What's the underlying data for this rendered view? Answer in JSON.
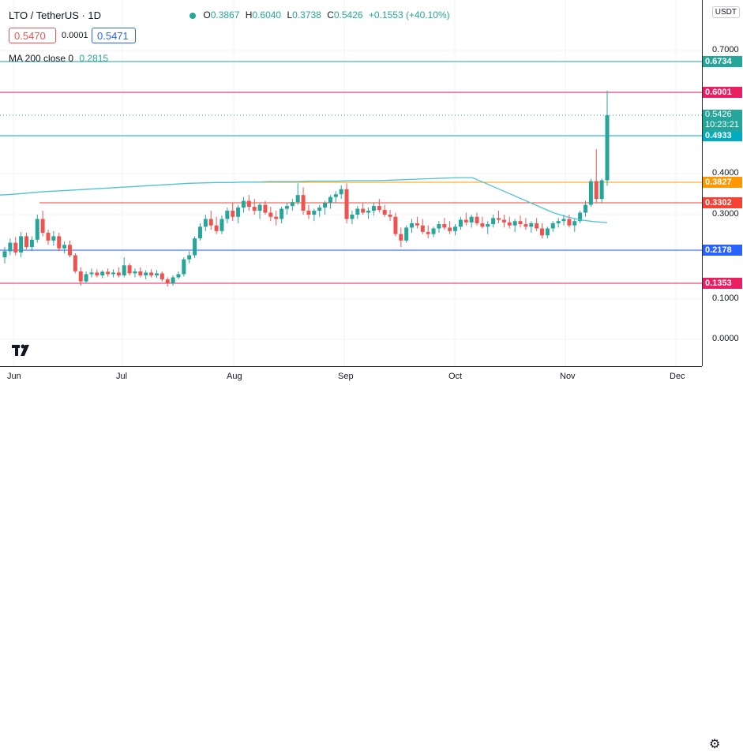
{
  "header": {
    "symbol": "LTO / TetherUS · 1D",
    "ohlc": {
      "o_label": "O",
      "o": "0.3867",
      "h_label": "H",
      "h": "0.6040",
      "l_label": "L",
      "l": "0.3738",
      "c_label": "C",
      "c": "0.5426",
      "change": "+0.1553 (+40.10%)"
    },
    "sell_price": "0.5470",
    "spread": "0.0001",
    "buy_price": "0.5471",
    "ma_label": "MA 200 close 0",
    "ma_value": "0.2815",
    "currency": "USDT"
  },
  "colors": {
    "up": "#26a69a",
    "down": "#ef5350",
    "ma": "#4ec3d1",
    "sell": "#ef5350",
    "buy": "#2962ff"
  },
  "chart_data": {
    "type": "candlestick",
    "y_ticks": [
      "0.7000",
      "0.4000",
      "0.3000",
      "0.1000",
      "0.0000"
    ],
    "x_ticks": [
      "Jun",
      "Jul",
      "Aug",
      "Sep",
      "Oct",
      "Nov",
      "Dec"
    ],
    "horizontal_levels": [
      {
        "value": 0.6734,
        "label": "0.6734",
        "color": "#26a69a"
      },
      {
        "value": 0.6001,
        "label": "0.6001",
        "color": "#e91e63"
      },
      {
        "value": 0.4933,
        "label": "0.4933",
        "color": "#00acc1"
      },
      {
        "value": 0.3827,
        "label": "0.3827",
        "color": "#ff9800"
      },
      {
        "value": 0.3302,
        "label": "0.3302",
        "color": "#f44336"
      },
      {
        "value": 0.2178,
        "label": "0.2178",
        "color": "#2962ff"
      },
      {
        "value": 0.1353,
        "label": "0.1353",
        "color": "#e91e63"
      }
    ],
    "last_price": {
      "value": 0.5426,
      "label": "0.5426",
      "countdown": "10:23:21"
    },
    "ohlc": [
      [
        0.2,
        0.225,
        0.185,
        0.215
      ],
      [
        0.215,
        0.245,
        0.205,
        0.235
      ],
      [
        0.235,
        0.248,
        0.205,
        0.212
      ],
      [
        0.212,
        0.26,
        0.2,
        0.25
      ],
      [
        0.25,
        0.258,
        0.22,
        0.225
      ],
      [
        0.225,
        0.25,
        0.215,
        0.242
      ],
      [
        0.242,
        0.3,
        0.235,
        0.29
      ],
      [
        0.29,
        0.31,
        0.25,
        0.258
      ],
      [
        0.258,
        0.265,
        0.23,
        0.24
      ],
      [
        0.24,
        0.262,
        0.228,
        0.25
      ],
      [
        0.25,
        0.258,
        0.215,
        0.222
      ],
      [
        0.222,
        0.238,
        0.21,
        0.23
      ],
      [
        0.23,
        0.24,
        0.2,
        0.205
      ],
      [
        0.205,
        0.21,
        0.16,
        0.165
      ],
      [
        0.165,
        0.175,
        0.13,
        0.14
      ],
      [
        0.14,
        0.165,
        0.135,
        0.158
      ],
      [
        0.158,
        0.172,
        0.15,
        0.162
      ],
      [
        0.162,
        0.17,
        0.15,
        0.155
      ],
      [
        0.155,
        0.168,
        0.148,
        0.164
      ],
      [
        0.164,
        0.172,
        0.152,
        0.158
      ],
      [
        0.158,
        0.17,
        0.15,
        0.162
      ],
      [
        0.162,
        0.175,
        0.15,
        0.155
      ],
      [
        0.155,
        0.2,
        0.15,
        0.18
      ],
      [
        0.18,
        0.185,
        0.155,
        0.16
      ],
      [
        0.16,
        0.172,
        0.15,
        0.165
      ],
      [
        0.165,
        0.175,
        0.15,
        0.155
      ],
      [
        0.155,
        0.168,
        0.145,
        0.162
      ],
      [
        0.162,
        0.17,
        0.15,
        0.155
      ],
      [
        0.155,
        0.168,
        0.148,
        0.16
      ],
      [
        0.16,
        0.165,
        0.14,
        0.145
      ],
      [
        0.145,
        0.15,
        0.128,
        0.135
      ],
      [
        0.135,
        0.155,
        0.13,
        0.15
      ],
      [
        0.15,
        0.165,
        0.145,
        0.158
      ],
      [
        0.158,
        0.2,
        0.152,
        0.195
      ],
      [
        0.195,
        0.215,
        0.185,
        0.205
      ],
      [
        0.205,
        0.25,
        0.198,
        0.245
      ],
      [
        0.245,
        0.28,
        0.24,
        0.272
      ],
      [
        0.272,
        0.3,
        0.262,
        0.29
      ],
      [
        0.29,
        0.31,
        0.265,
        0.275
      ],
      [
        0.275,
        0.295,
        0.255,
        0.262
      ],
      [
        0.262,
        0.298,
        0.255,
        0.29
      ],
      [
        0.29,
        0.318,
        0.28,
        0.31
      ],
      [
        0.31,
        0.33,
        0.285,
        0.295
      ],
      [
        0.295,
        0.325,
        0.28,
        0.318
      ],
      [
        0.318,
        0.345,
        0.305,
        0.335
      ],
      [
        0.335,
        0.35,
        0.31,
        0.32
      ],
      [
        0.32,
        0.34,
        0.3,
        0.31
      ],
      [
        0.31,
        0.33,
        0.29,
        0.325
      ],
      [
        0.325,
        0.335,
        0.3,
        0.305
      ],
      [
        0.305,
        0.32,
        0.285,
        0.295
      ],
      [
        0.295,
        0.31,
        0.275,
        0.29
      ],
      [
        0.29,
        0.32,
        0.28,
        0.315
      ],
      [
        0.315,
        0.33,
        0.3,
        0.322
      ],
      [
        0.322,
        0.34,
        0.31,
        0.332
      ],
      [
        0.332,
        0.38,
        0.325,
        0.35
      ],
      [
        0.35,
        0.37,
        0.3,
        0.31
      ],
      [
        0.31,
        0.325,
        0.29,
        0.3
      ],
      [
        0.3,
        0.315,
        0.285,
        0.31
      ],
      [
        0.31,
        0.325,
        0.295,
        0.318
      ],
      [
        0.318,
        0.335,
        0.3,
        0.33
      ],
      [
        0.33,
        0.35,
        0.315,
        0.345
      ],
      [
        0.345,
        0.36,
        0.33,
        0.352
      ],
      [
        0.352,
        0.375,
        0.34,
        0.365
      ],
      [
        0.365,
        0.38,
        0.28,
        0.29
      ],
      [
        0.29,
        0.31,
        0.278,
        0.3
      ],
      [
        0.3,
        0.322,
        0.29,
        0.315
      ],
      [
        0.315,
        0.33,
        0.3,
        0.305
      ],
      [
        0.305,
        0.318,
        0.29,
        0.31
      ],
      [
        0.31,
        0.33,
        0.298,
        0.322
      ],
      [
        0.322,
        0.34,
        0.305,
        0.312
      ],
      [
        0.312,
        0.325,
        0.295,
        0.3
      ],
      [
        0.3,
        0.312,
        0.285,
        0.295
      ],
      [
        0.295,
        0.305,
        0.25,
        0.255
      ],
      [
        0.255,
        0.27,
        0.225,
        0.24
      ],
      [
        0.24,
        0.275,
        0.235,
        0.27
      ],
      [
        0.27,
        0.29,
        0.258,
        0.28
      ],
      [
        0.28,
        0.295,
        0.268,
        0.275
      ],
      [
        0.275,
        0.29,
        0.255,
        0.26
      ],
      [
        0.26,
        0.275,
        0.245,
        0.255
      ],
      [
        0.255,
        0.272,
        0.248,
        0.268
      ],
      [
        0.268,
        0.285,
        0.258,
        0.278
      ],
      [
        0.278,
        0.292,
        0.265,
        0.27
      ],
      [
        0.27,
        0.285,
        0.255,
        0.262
      ],
      [
        0.262,
        0.278,
        0.252,
        0.272
      ],
      [
        0.272,
        0.295,
        0.265,
        0.288
      ],
      [
        0.288,
        0.305,
        0.275,
        0.282
      ],
      [
        0.282,
        0.3,
        0.27,
        0.295
      ],
      [
        0.295,
        0.305,
        0.275,
        0.28
      ],
      [
        0.28,
        0.295,
        0.268,
        0.272
      ],
      [
        0.272,
        0.285,
        0.255,
        0.278
      ],
      [
        0.278,
        0.3,
        0.27,
        0.292
      ],
      [
        0.292,
        0.31,
        0.28,
        0.288
      ],
      [
        0.288,
        0.3,
        0.27,
        0.282
      ],
      [
        0.282,
        0.295,
        0.268,
        0.275
      ],
      [
        0.275,
        0.29,
        0.26,
        0.285
      ],
      [
        0.285,
        0.298,
        0.27,
        0.278
      ],
      [
        0.278,
        0.292,
        0.265,
        0.272
      ],
      [
        0.272,
        0.285,
        0.258,
        0.28
      ],
      [
        0.28,
        0.292,
        0.262,
        0.268
      ],
      [
        0.268,
        0.28,
        0.245,
        0.252
      ],
      [
        0.252,
        0.272,
        0.245,
        0.268
      ],
      [
        0.268,
        0.285,
        0.26,
        0.28
      ],
      [
        0.28,
        0.292,
        0.27,
        0.285
      ],
      [
        0.285,
        0.3,
        0.275,
        0.29
      ],
      [
        0.29,
        0.3,
        0.27,
        0.275
      ],
      [
        0.275,
        0.292,
        0.26,
        0.285
      ],
      [
        0.285,
        0.31,
        0.28,
        0.305
      ],
      [
        0.305,
        0.335,
        0.295,
        0.325
      ],
      [
        0.325,
        0.39,
        0.32,
        0.385
      ],
      [
        0.385,
        0.46,
        0.33,
        0.34
      ],
      [
        0.34,
        0.39,
        0.33,
        0.3867
      ],
      [
        0.3867,
        0.604,
        0.3738,
        0.5426
      ]
    ],
    "ma200": [
      0.35,
      0.352,
      0.355,
      0.358,
      0.36,
      0.362,
      0.364,
      0.366,
      0.368,
      0.37,
      0.372,
      0.374,
      0.376,
      0.378,
      0.38,
      0.381,
      0.382,
      0.382,
      0.383,
      0.383,
      0.384,
      0.384,
      0.384,
      0.385,
      0.385,
      0.385,
      0.386,
      0.386,
      0.386,
      0.387,
      0.388,
      0.389,
      0.39,
      0.391,
      0.392,
      0.392,
      0.38,
      0.365,
      0.35,
      0.335,
      0.32,
      0.305,
      0.295,
      0.288,
      0.284,
      0.2815
    ]
  }
}
